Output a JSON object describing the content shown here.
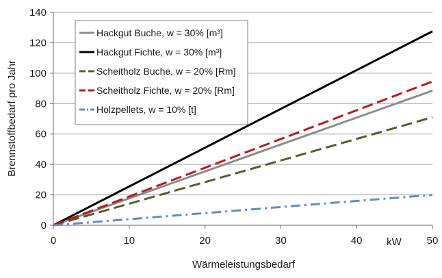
{
  "chart_data": {
    "type": "line",
    "xlabel": "Wärmeleistungsbedarf",
    "ylabel": "Brennstoffbedarf pro Jahr",
    "x_unit_label": "kW",
    "xlim": [
      0,
      50
    ],
    "ylim": [
      0,
      140
    ],
    "x_ticks": [
      0,
      10,
      20,
      30,
      40,
      50
    ],
    "y_ticks": [
      0,
      20,
      40,
      60,
      80,
      100,
      120,
      140
    ],
    "grid": "horizontal",
    "legend_position": "top-left",
    "series": [
      {
        "name": "Hackgut Buche, w = 30% [m³]",
        "x": [
          0,
          50
        ],
        "y": [
          0,
          88.5
        ],
        "color": "#8c8c8c",
        "dash": "solid"
      },
      {
        "name": "Hackgut Fichte, w = 30% [m³]",
        "x": [
          0,
          50
        ],
        "y": [
          0,
          127.5
        ],
        "color": "#000000",
        "dash": "solid"
      },
      {
        "name": "Scheitholz Buche, w = 20% [Rm]",
        "x": [
          0,
          50
        ],
        "y": [
          0,
          71
        ],
        "color": "#4f6228",
        "dash": "dashed"
      },
      {
        "name": "Scheitholz Fichte, w = 20% [Rm]",
        "x": [
          0,
          50
        ],
        "y": [
          0,
          94.5
        ],
        "color": "#c0161c",
        "dash": "dashed"
      },
      {
        "name": "Holzpellets, w = 10% [t]",
        "x": [
          0,
          50
        ],
        "y": [
          0,
          20
        ],
        "color": "#5b8fc9",
        "dash": "dashdot"
      }
    ]
  }
}
